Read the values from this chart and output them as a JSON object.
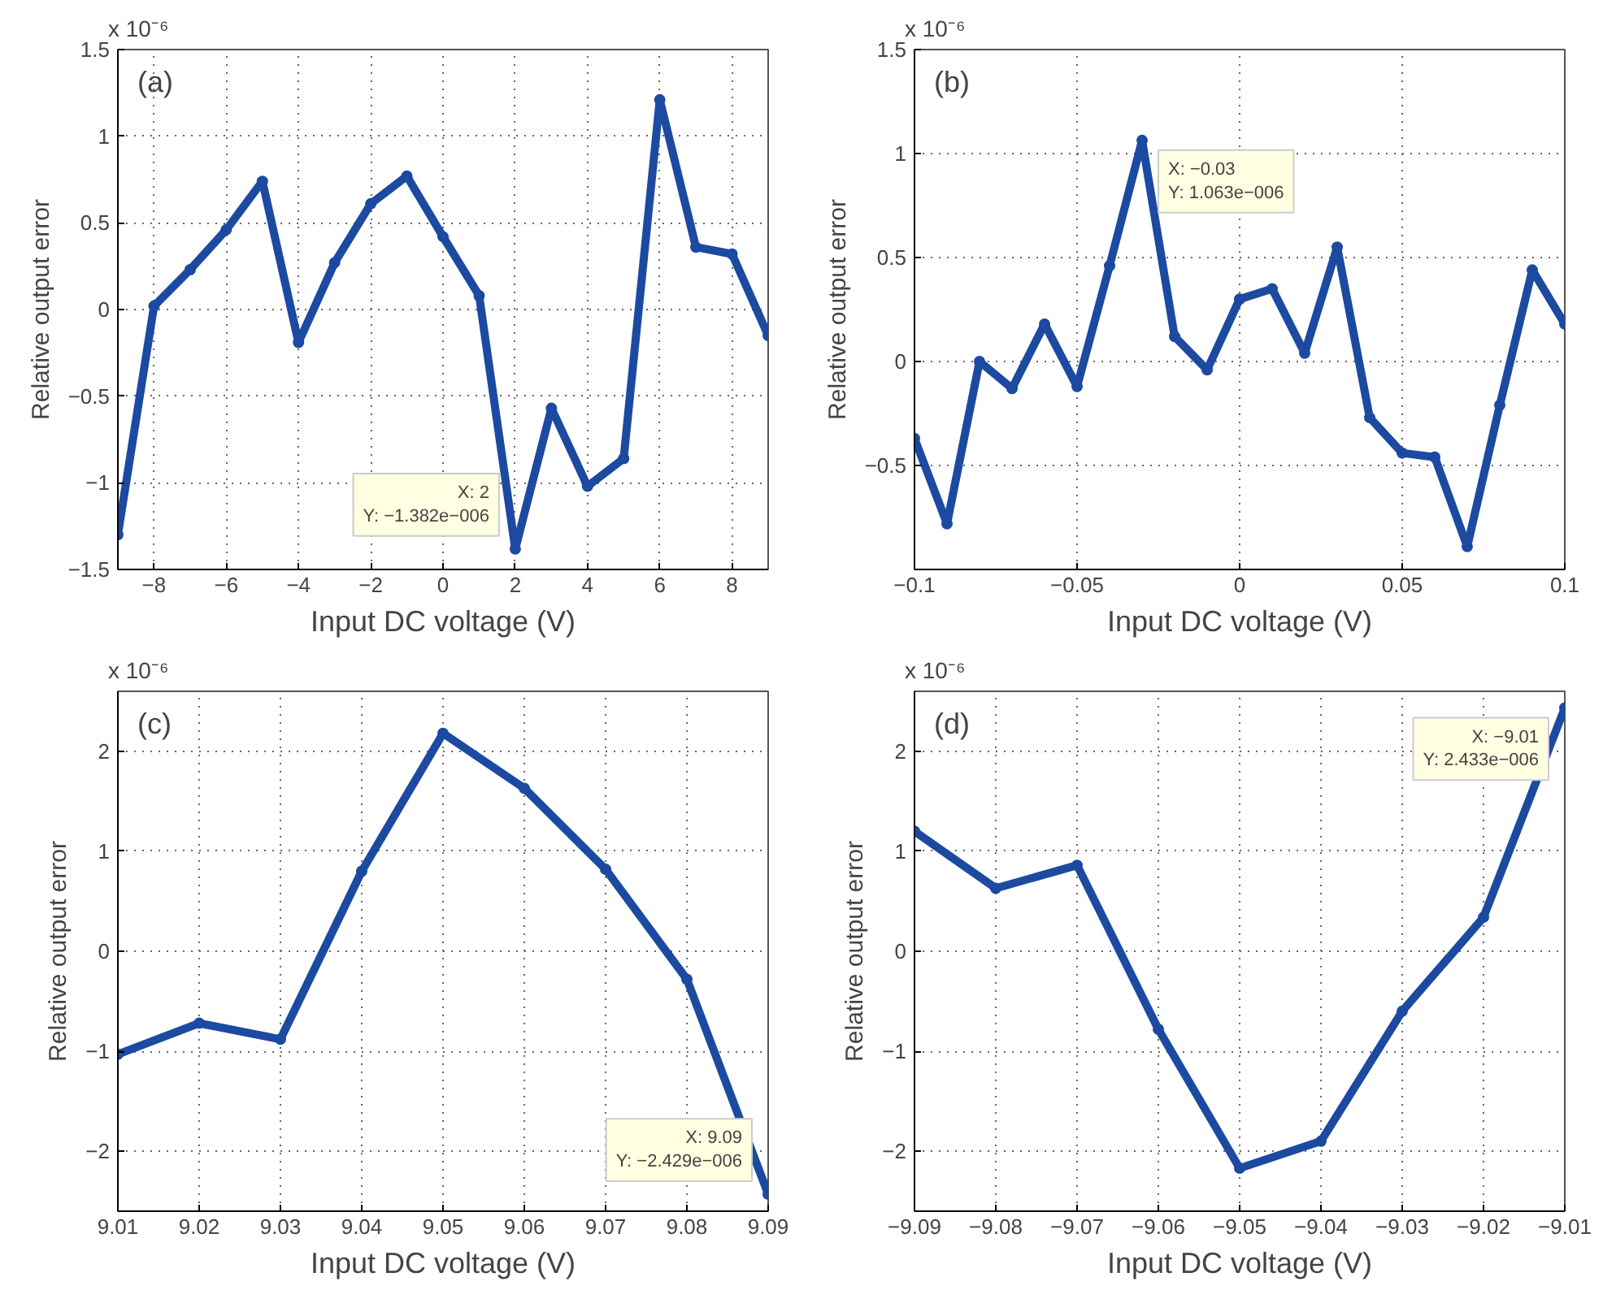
{
  "chart_data": [
    {
      "type": "line",
      "xlabel": "Input DC voltage (V)",
      "ylabel": "Relative output error",
      "annotations": [
        "(a)",
        "x 10⁻⁶",
        {
          "text": "X: 2\nY: −1.382e−006",
          "x": 2,
          "y": -1.382
        }
      ],
      "x": [
        -9,
        -8,
        -7,
        -6,
        -5,
        -4,
        -3,
        -2,
        -1,
        0,
        1,
        2,
        3,
        4,
        5,
        6,
        7,
        8,
        9
      ],
      "series": [
        {
          "color": "#1c4aa0",
          "values": [
            -1.3,
            0.02,
            0.23,
            0.46,
            0.74,
            -0.19,
            0.27,
            0.61,
            0.77,
            0.42,
            0.08,
            -1.382,
            -0.57,
            -1.02,
            -0.86,
            1.21,
            0.36,
            0.32,
            -0.15
          ]
        }
      ],
      "xlim": [
        -9,
        9
      ],
      "xticks": [
        -8,
        -6,
        -4,
        -2,
        0,
        2,
        4,
        6,
        8
      ],
      "ylim": [
        -1.5,
        1.5
      ],
      "yticks": [
        -1.5,
        -1,
        -0.5,
        0,
        0.5,
        1,
        1.5
      ],
      "grid": true,
      "marker": "circle",
      "line_style": "solid"
    },
    {
      "type": "line",
      "xlabel": "Input DC voltage (V)",
      "ylabel": "Relative output error",
      "annotations": [
        "(b)",
        "x 10⁻⁶",
        {
          "text": "X: −0.03\nY: 1.063e−006",
          "x": -0.03,
          "y": 1.063
        }
      ],
      "x": [
        -0.1,
        -0.09,
        -0.08,
        -0.07,
        -0.06,
        -0.05,
        -0.04,
        -0.03,
        -0.02,
        -0.01,
        0,
        0.01,
        0.02,
        0.03,
        0.04,
        0.05,
        0.06,
        0.07,
        0.08,
        0.09,
        0.1
      ],
      "series": [
        {
          "color": "#1c4aa0",
          "values": [
            -0.37,
            -0.78,
            0.0,
            -0.13,
            0.18,
            -0.12,
            0.46,
            1.063,
            0.12,
            -0.04,
            0.3,
            0.35,
            0.04,
            0.55,
            -0.27,
            -0.44,
            -0.46,
            -0.89,
            -0.21,
            0.44,
            0.18
          ]
        }
      ],
      "xlim": [
        -0.1,
        0.1
      ],
      "xticks": [
        -0.1,
        -0.05,
        0,
        0.05,
        0.1
      ],
      "ylim": [
        -1,
        1.5
      ],
      "yticks": [
        -0.5,
        0,
        0.5,
        1,
        1.5
      ],
      "grid": true,
      "marker": "circle",
      "line_style": "solid"
    },
    {
      "type": "line",
      "xlabel": "Input DC voltage (V)",
      "ylabel": "Relative output error",
      "annotations": [
        "(c)",
        "x 10⁻⁶",
        {
          "text": "X: 9.09\nY: −2.429e−006",
          "x": 9.09,
          "y": -2.429
        }
      ],
      "x": [
        9.01,
        9.02,
        9.03,
        9.04,
        9.05,
        9.06,
        9.07,
        9.08,
        9.09
      ],
      "series": [
        {
          "color": "#1c4aa0",
          "values": [
            -1.03,
            -0.72,
            -0.88,
            0.8,
            2.18,
            1.63,
            0.82,
            -0.28,
            -2.429
          ]
        }
      ],
      "xlim": [
        9.01,
        9.09
      ],
      "xticks": [
        9.01,
        9.02,
        9.03,
        9.04,
        9.05,
        9.06,
        9.07,
        9.08,
        9.09
      ],
      "ylim": [
        -2.6,
        2.6
      ],
      "yticks": [
        -2,
        -1,
        0,
        1,
        2
      ],
      "grid": true,
      "marker": "circle",
      "line_style": "solid"
    },
    {
      "type": "line",
      "xlabel": "Input DC voltage (V)",
      "ylabel": "Relative output error",
      "annotations": [
        "(d)",
        "x 10⁻⁶",
        {
          "text": "X: −9.01\nY: 2.433e−006",
          "x": -9.01,
          "y": 2.433
        }
      ],
      "x": [
        -9.09,
        -9.08,
        -9.07,
        -9.06,
        -9.05,
        -9.04,
        -9.03,
        -9.02,
        -9.01
      ],
      "series": [
        {
          "color": "#1c4aa0",
          "values": [
            1.2,
            0.63,
            0.86,
            -0.78,
            -2.17,
            -1.9,
            -0.6,
            0.34,
            2.433
          ]
        }
      ],
      "xlim": [
        -9.09,
        -9.01
      ],
      "xticks": [
        -9.09,
        -9.08,
        -9.07,
        -9.06,
        -9.05,
        -9.04,
        -9.03,
        -9.02,
        -9.01
      ],
      "ylim": [
        -2.6,
        2.6
      ],
      "yticks": [
        -2,
        -1,
        0,
        1,
        2
      ],
      "grid": true,
      "marker": "circle",
      "line_style": "solid"
    }
  ]
}
